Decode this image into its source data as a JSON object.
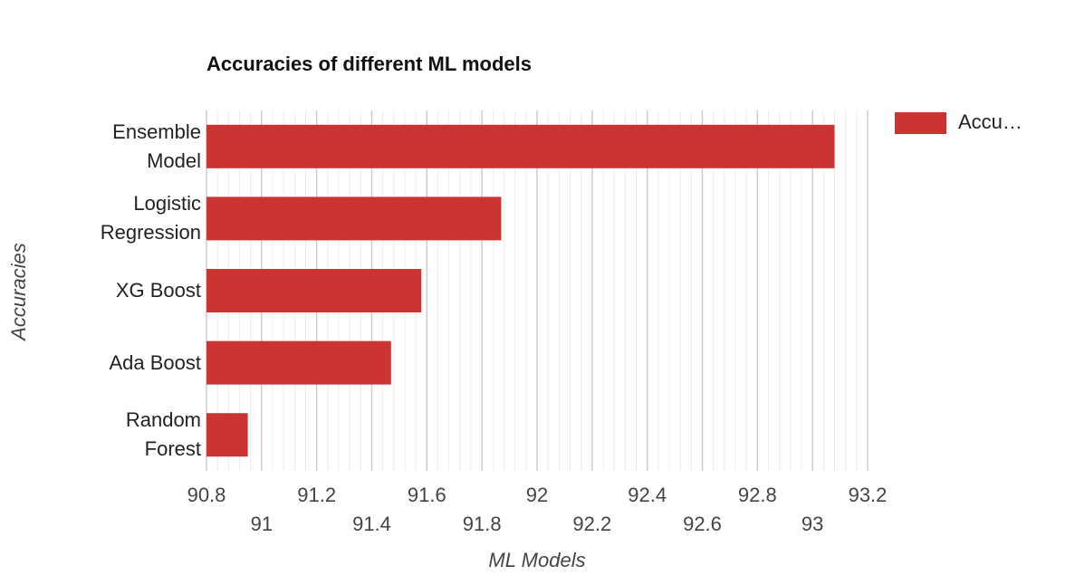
{
  "chart_data": {
    "type": "hbar",
    "title": "Accuracies of different ML models",
    "x_label": "ML Models",
    "y_label": "Accuracies",
    "categories": [
      "Ensemble Model",
      "Logistic Regression",
      "XG Boost",
      "Ada Boost",
      "Random Forest"
    ],
    "series": [
      {
        "name": "Accu…",
        "color": "#cc3333",
        "values": [
          93.08,
          91.87,
          91.58,
          91.47,
          90.95
        ]
      }
    ],
    "xlim": [
      90.8,
      93.2
    ],
    "xticks": [
      90.8,
      91,
      91.2,
      91.4,
      91.6,
      91.8,
      92,
      92.2,
      92.4,
      92.6,
      92.8,
      93,
      93.2
    ],
    "grid": true,
    "minor_grid_per_interval": 4,
    "legend": "right"
  }
}
